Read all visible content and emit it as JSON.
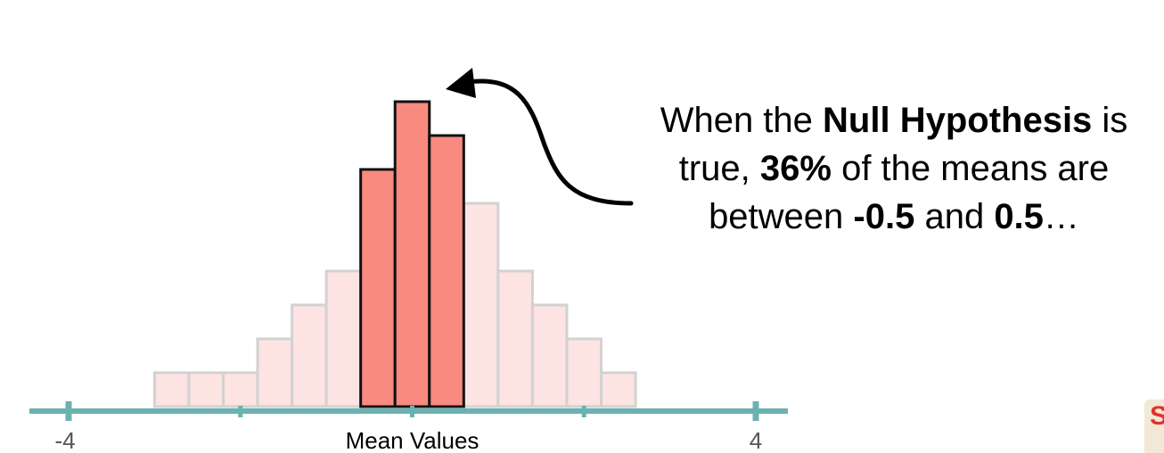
{
  "chart_data": {
    "type": "bar",
    "xlabel": "Mean Values",
    "xlim": [
      -4,
      4
    ],
    "x_tick_labels": [
      "-4",
      "4"
    ],
    "x_ticks": [
      -4,
      -2,
      0,
      2,
      4
    ],
    "bin_width": 0.4,
    "bins": [
      {
        "start": -3.0,
        "end": -2.6,
        "count": 1
      },
      {
        "start": -2.6,
        "end": -2.2,
        "count": 1
      },
      {
        "start": -2.2,
        "end": -1.8,
        "count": 1
      },
      {
        "start": -1.8,
        "end": -1.4,
        "count": 2
      },
      {
        "start": -1.4,
        "end": -1.0,
        "count": 3
      },
      {
        "start": -1.0,
        "end": -0.6,
        "count": 4
      },
      {
        "start": -0.6,
        "end": -0.2,
        "count": 7
      },
      {
        "start": -0.2,
        "end": 0.2,
        "count": 9
      },
      {
        "start": 0.2,
        "end": 0.6,
        "count": 8
      },
      {
        "start": 0.6,
        "end": 1.0,
        "count": 6
      },
      {
        "start": 1.0,
        "end": 1.4,
        "count": 4
      },
      {
        "start": 1.4,
        "end": 1.8,
        "count": 3
      },
      {
        "start": 1.8,
        "end": 2.2,
        "count": 2
      },
      {
        "start": 2.2,
        "end": 2.6,
        "count": 1
      }
    ],
    "highlighted_bins": [
      6,
      7,
      8
    ],
    "colors": {
      "highlight_fill": "#f98a80",
      "highlight_stroke": "#111111",
      "faded_fill": "#fde3e2",
      "faded_stroke": "#d2d2d2",
      "axis": "#6bb1b0"
    }
  },
  "annotation": {
    "line1_prefix": "When the ",
    "line1_bold": "Null Hypothesis",
    "line1_suffix": " is",
    "line2_prefix": "true, ",
    "line2_bold": "36%",
    "line2_suffix": " of the means are",
    "line3_prefix": "between ",
    "line3_bold1": "-0.5",
    "line3_mid": " and ",
    "line3_bold2": "0.5",
    "line3_suffix": "…"
  },
  "logo": {
    "text": "S"
  }
}
